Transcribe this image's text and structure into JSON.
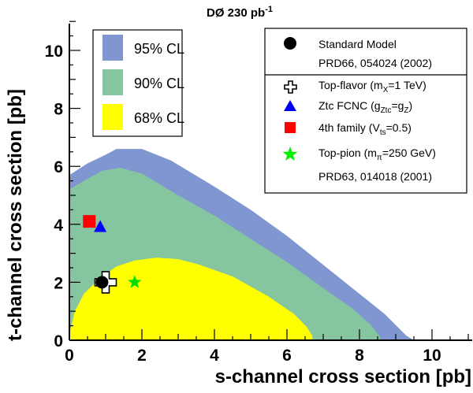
{
  "chart_data": {
    "type": "contour",
    "title": "DØ 230 pb",
    "title_superscript": "-1",
    "xlabel": "s-channel cross section [pb]",
    "ylabel": "t-channel cross section [pb]",
    "xlim": [
      0,
      11
    ],
    "ylim": [
      0,
      11
    ],
    "x_ticks": [
      "0",
      "2",
      "4",
      "6",
      "8",
      "10"
    ],
    "y_ticks": [
      "0",
      "2",
      "4",
      "6",
      "8",
      "10"
    ],
    "grid": false,
    "regions": [
      {
        "name": "95% CL",
        "color": "#7f96d0",
        "boundary": [
          [
            0,
            0
          ],
          [
            0,
            5.7
          ],
          [
            0.5,
            6.1
          ],
          [
            1.0,
            6.4
          ],
          [
            1.3,
            6.6
          ],
          [
            2.0,
            6.6
          ],
          [
            2.8,
            6.2
          ],
          [
            4.0,
            5.3
          ],
          [
            5.0,
            4.5
          ],
          [
            6.0,
            3.6
          ],
          [
            7.0,
            2.6
          ],
          [
            8.0,
            1.6
          ],
          [
            8.7,
            0.9
          ],
          [
            9.1,
            0.4
          ],
          [
            9.3,
            0.15
          ],
          [
            9.5,
            0
          ]
        ]
      },
      {
        "name": "90% CL",
        "color": "#85c59f",
        "boundary": [
          [
            0,
            0
          ],
          [
            0,
            5.2
          ],
          [
            0.4,
            5.5
          ],
          [
            0.9,
            5.85
          ],
          [
            1.4,
            5.95
          ],
          [
            2.0,
            5.75
          ],
          [
            3.0,
            5.0
          ],
          [
            4.0,
            4.3
          ],
          [
            5.0,
            3.5
          ],
          [
            6.0,
            2.7
          ],
          [
            7.0,
            1.8
          ],
          [
            7.8,
            1.1
          ],
          [
            8.3,
            0.55
          ],
          [
            8.55,
            0.15
          ],
          [
            8.6,
            0
          ]
        ]
      },
      {
        "name": "68% CL",
        "color": "#ffff00",
        "boundary": [
          [
            0,
            0
          ],
          [
            0,
            0.2
          ],
          [
            0.15,
            1.0
          ],
          [
            0.4,
            1.6
          ],
          [
            0.8,
            2.1
          ],
          [
            1.3,
            2.55
          ],
          [
            1.8,
            2.75
          ],
          [
            2.4,
            2.85
          ],
          [
            3.0,
            2.8
          ],
          [
            3.6,
            2.6
          ],
          [
            4.5,
            2.2
          ],
          [
            5.5,
            1.5
          ],
          [
            6.2,
            0.9
          ],
          [
            6.55,
            0.45
          ],
          [
            6.7,
            0.15
          ],
          [
            6.7,
            0
          ]
        ]
      }
    ],
    "region_legend": [
      "95% CL",
      "90% CL",
      "68% CL"
    ],
    "points": [
      {
        "label": "Standard Model",
        "x": 0.9,
        "y": 2.0,
        "marker": "circle",
        "color": "#000000"
      },
      {
        "label": "Top-flavor",
        "x": 1.0,
        "y": 2.0,
        "marker": "open-cross",
        "color": "#000000"
      },
      {
        "label": "Ztc FCNC",
        "x": 0.85,
        "y": 3.9,
        "marker": "triangle",
        "color": "#0000ff"
      },
      {
        "label": "4th family",
        "x": 0.55,
        "y": 4.1,
        "marker": "square",
        "color": "#ff0000"
      },
      {
        "label": "Top-pion",
        "x": 1.8,
        "y": 2.0,
        "marker": "star",
        "color": "#00dd00"
      }
    ],
    "legend": {
      "standard_model": {
        "name": "Standard Model",
        "ref": "PRD66, 054024 (2002)"
      },
      "top_flavor": {
        "pre": "Top-flavor  (m",
        "sub": "X",
        "post": "=1 TeV)"
      },
      "ztc_fcnc": {
        "pre": "Ztc FCNC  (g",
        "sub": "Ztc",
        "mid": "=g",
        "sub2": "Z",
        "post": ")"
      },
      "fourth_family": {
        "pre": "4th family  (V",
        "sub": "ts",
        "post": "=0.5)"
      },
      "top_pion": {
        "pre": "Top-pion  (m",
        "sub": "π",
        "post": "=250 GeV)"
      },
      "ref2": "PRD63, 014018 (2001)"
    }
  }
}
